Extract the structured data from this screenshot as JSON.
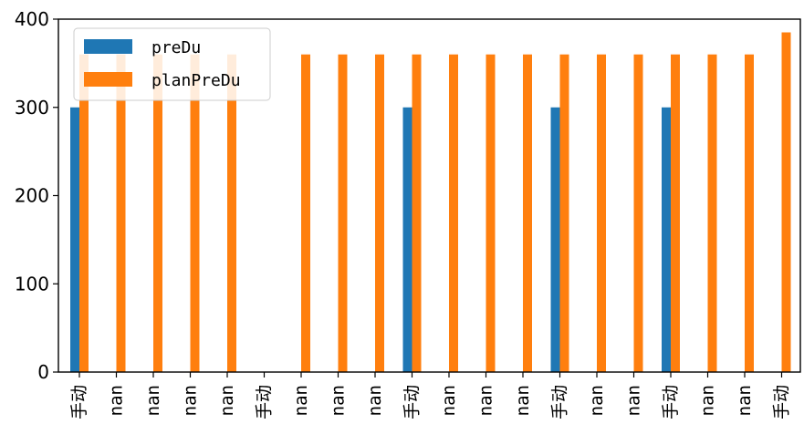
{
  "chart_data": {
    "type": "bar",
    "categories": [
      "手动",
      "nan",
      "nan",
      "nan",
      "nan",
      "手动",
      "nan",
      "nan",
      "nan",
      "手动",
      "nan",
      "nan",
      "nan",
      "手动",
      "nan",
      "nan",
      "手动",
      "nan",
      "nan",
      "手动"
    ],
    "series": [
      {
        "name": "preDu",
        "color": "#1f77b4",
        "values": [
          300,
          null,
          null,
          null,
          null,
          null,
          null,
          null,
          null,
          300,
          null,
          null,
          null,
          300,
          null,
          null,
          300,
          null,
          null,
          null
        ]
      },
      {
        "name": "planPreDu",
        "color": "#ff7f0e",
        "values": [
          360,
          360,
          360,
          360,
          360,
          null,
          360,
          360,
          360,
          360,
          360,
          360,
          360,
          360,
          360,
          360,
          360,
          360,
          360,
          385
        ]
      }
    ],
    "ylim": [
      0,
      400
    ],
    "yticks": [
      0,
      100,
      200,
      300,
      400
    ],
    "legend": "top-left",
    "grid": false,
    "xlabel": "",
    "ylabel": "",
    "title": ""
  }
}
